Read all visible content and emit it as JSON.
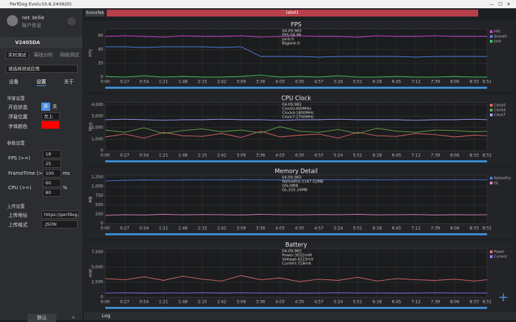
{
  "window": {
    "title": "PerfDog Evo(v10.6.240920)"
  },
  "sidebar": {
    "user": "net 3ellie",
    "account": "账户信息",
    "device": "V2405DA",
    "modes": [
      "实时测试",
      "离线分析",
      "网络测试"
    ],
    "app_select": "请选择测试应用",
    "tabs": [
      "设备",
      "设置",
      "关于"
    ],
    "float_section": "浮窗设置",
    "float_state": "开启状态",
    "on": "开",
    "off": "关",
    "float_pos": "浮窗位置",
    "pos_value": "左上",
    "font_color": "字体颜色",
    "param_section": "参数设置",
    "fps_label": "FPS (>=)",
    "fps_values": [
      "18",
      "25"
    ],
    "ft_label": "FrameTime (>=)",
    "ft_value": "100",
    "ft_unit": "ms",
    "cpu_label": "CPU (>=)",
    "cpu_values": [
      "60",
      "80"
    ],
    "cpu_unit": "%",
    "upload_section": "上传设置",
    "upload_addr": "上传地址",
    "upload_url": "https://perfdog.q",
    "upload_fmt": "上传格式",
    "fmt_value": ".JSON",
    "default_btn": "默认"
  },
  "tabs": {
    "scene": "SceneTab",
    "label": "label1"
  },
  "bottom": {
    "log": "Log"
  },
  "time_axis": {
    "xlim": [
      0,
      531
    ],
    "x": [
      0,
      27,
      54,
      81,
      108,
      135,
      162,
      189,
      216,
      243,
      270,
      297,
      324,
      351,
      378,
      405,
      432,
      459,
      486,
      513,
      531
    ],
    "xticks": [
      {
        "value": 0,
        "label": "0:00"
      },
      {
        "value": 27,
        "label": "0:27"
      },
      {
        "value": 54,
        "label": "0:54"
      },
      {
        "value": 81,
        "label": "1:21"
      },
      {
        "value": 108,
        "label": "1:48"
      },
      {
        "value": 135,
        "label": "2:15"
      },
      {
        "value": 162,
        "label": "2:42"
      },
      {
        "value": 189,
        "label": "3:09"
      },
      {
        "value": 216,
        "label": "3:36"
      },
      {
        "value": 243,
        "label": "4:03"
      },
      {
        "value": 270,
        "label": "4:30"
      },
      {
        "value": 297,
        "label": "4:57"
      },
      {
        "value": 324,
        "label": "5:24"
      },
      {
        "value": 351,
        "label": "5:51"
      },
      {
        "value": 378,
        "label": "6:18"
      },
      {
        "value": 405,
        "label": "6:45"
      },
      {
        "value": 432,
        "label": "7:12"
      },
      {
        "value": 459,
        "label": "7:39"
      },
      {
        "value": 486,
        "label": "8:06"
      },
      {
        "value": 513,
        "label": "8:33"
      },
      {
        "value": 531,
        "label": "8:51"
      }
    ]
  },
  "charts": [
    {
      "type": "line",
      "title": "FPS",
      "ylabel": "FPS",
      "ylim": [
        0,
        70
      ],
      "yticks": [
        0,
        20,
        40,
        60
      ],
      "info": [
        "04:09.983",
        "FPS:58.99",
        "Jank:0",
        "BigJank:0"
      ],
      "series": [
        {
          "name": "FPS",
          "color": "#d040d0",
          "values": [
            59,
            60,
            59,
            58,
            60,
            59,
            59,
            60,
            58,
            59,
            60,
            59,
            59,
            58,
            60,
            59,
            59,
            60,
            59,
            59,
            59
          ]
        },
        {
          "name": "Smooth",
          "color": "#4f7fe0",
          "values": [
            44,
            44,
            43,
            44,
            44,
            44,
            43,
            44,
            30,
            30,
            30,
            29,
            30,
            30,
            30,
            30,
            29,
            30,
            30,
            30,
            30
          ]
        },
        {
          "name": "Jank",
          "color": "#3fbf5f",
          "values": [
            1,
            0,
            2,
            0,
            1,
            0,
            0,
            1,
            3,
            0,
            1,
            0,
            2,
            0,
            0,
            1,
            0,
            0,
            1,
            0,
            0
          ]
        }
      ]
    },
    {
      "type": "line",
      "title": "CPU Clock",
      "ylabel": "MHz",
      "ylim": [
        0,
        4200
      ],
      "yticks": [
        0,
        {
          "value": 1000,
          "label": "1,000"
        },
        {
          "value": 2000,
          "label": "2,000"
        },
        {
          "value": 3000,
          "label": "3,000"
        },
        {
          "value": 4000,
          "label": "4,000"
        }
      ],
      "info": [
        "04:09.983",
        "Clock0:600MHz",
        "Clock4:1800MHz",
        "Clock7:2700MHz"
      ],
      "series": [
        {
          "name": "Clock0",
          "color": "#e06666",
          "values": [
            1200,
            1450,
            1100,
            1600,
            1300,
            1250,
            1500,
            1150,
            1700,
            1200,
            1350,
            1450,
            1100,
            1600,
            1300,
            1250,
            1500,
            1400,
            1200,
            1350,
            1300
          ]
        },
        {
          "name": "Clock4",
          "color": "#6aa84f",
          "values": [
            1800,
            1600,
            2000,
            1500,
            1750,
            1900,
            1650,
            1800,
            1550,
            2100,
            1700,
            1600,
            1850,
            1500,
            1950,
            1700,
            1600,
            1800,
            1750,
            1650,
            1700
          ]
        },
        {
          "name": "Clock7",
          "color": "#a0a0ff",
          "values": [
            2700,
            2750,
            2700,
            2650,
            2700,
            2700,
            2750,
            2700,
            2700,
            2650,
            2700,
            2700,
            2750,
            2700,
            2700,
            2700,
            2650,
            2700,
            2700,
            2750,
            2700
          ]
        }
      ]
    },
    {
      "type": "line",
      "title": "Memory Detail",
      "ylabel": "MB",
      "ylim": [
        0,
        1300
      ],
      "yticks": [
        0,
        250,
        500,
        750,
        {
          "value": 1000,
          "label": "1,000"
        },
        {
          "value": 1250,
          "label": "1,250"
        }
      ],
      "info": [
        "04:09.983",
        "NativePss:1167.02MB",
        "Gfx:0MB",
        "GL:315.24MB"
      ],
      "series": [
        {
          "name": "NativePss",
          "color": "#4f7fe0",
          "values": [
            1150,
            1170,
            1180,
            1175,
            1180,
            1185,
            1180,
            1190,
            1185,
            1180,
            1182,
            1186,
            1184,
            1188,
            1183,
            1185,
            1187,
            1184,
            1186,
            1185,
            1184
          ]
        },
        {
          "name": "GL",
          "color": "#e080c0",
          "values": [
            220,
            240,
            230,
            250,
            235,
            245,
            240,
            230,
            250,
            240,
            235,
            245,
            240,
            250,
            235,
            240,
            245,
            230,
            240,
            235,
            240
          ]
        }
      ]
    },
    {
      "type": "line",
      "title": "Battery",
      "ylabel": "mW",
      "ylim": [
        0,
        8000
      ],
      "yticks": [
        0,
        {
          "value": 2500,
          "label": "2,500"
        },
        {
          "value": 5000,
          "label": "5,000"
        },
        {
          "value": 7500,
          "label": "7,500"
        }
      ],
      "info": [
        "04:09.983",
        "Power:3032mW",
        "Voltage:4223mV",
        "Current:718mA"
      ],
      "series": [
        {
          "name": "Power",
          "color": "#e07070",
          "values": [
            3100,
            2900,
            3400,
            2800,
            3500,
            3000,
            2700,
            3600,
            2900,
            3200,
            2600,
            3000,
            2800,
            3300,
            2700,
            3100,
            2900,
            2800,
            3000,
            2700,
            2900
          ]
        },
        {
          "name": "Current",
          "color": "#a070ff",
          "values": [
            700,
            720,
            690,
            710,
            700,
            730,
            690,
            720,
            700,
            710,
            690,
            700,
            720,
            700,
            710,
            690,
            700,
            720,
            700,
            710,
            700
          ]
        }
      ]
    }
  ]
}
